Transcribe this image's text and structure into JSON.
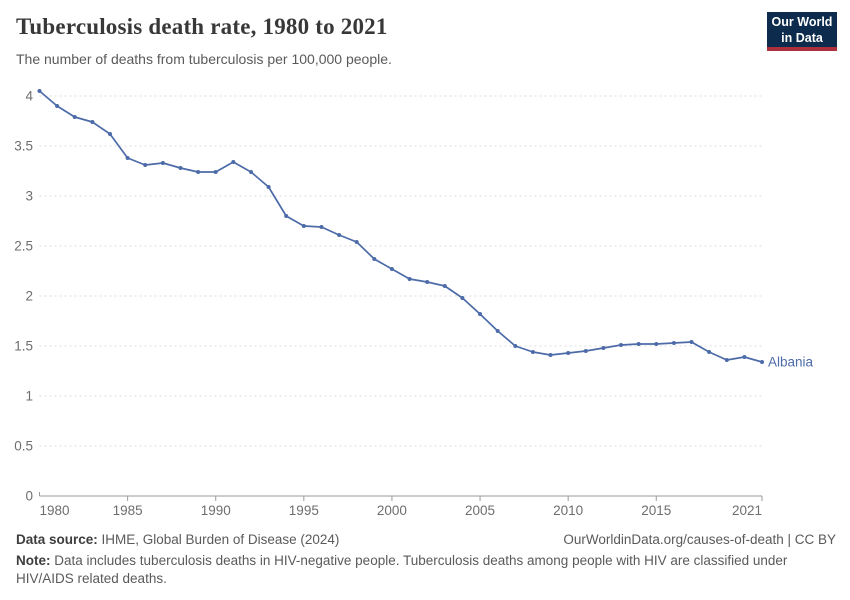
{
  "header": {
    "title": "Tuberculosis death rate, 1980 to 2021",
    "subtitle": "The number of deaths from tuberculosis per 100,000 people.",
    "logo": {
      "line1": "Our World",
      "line2": "in Data"
    }
  },
  "footer": {
    "source_label": "Data source:",
    "source_value": " IHME, Global Burden of Disease (2024)",
    "link": "OurWorldinData.org/causes-of-death | CC BY",
    "note_label": "Note:",
    "note_value": " Data includes tuberculosis deaths in HIV-negative people. Tuberculosis deaths among people with HIV are classified under HIV/AIDS related deaths."
  },
  "colors": {
    "line": "#4c6ba8",
    "grid": "#dcdcdc",
    "axis": "#9a9a9a",
    "tick_text": "#6e6e6e",
    "logo_navy": "#0d2b4c",
    "logo_red": "#ac2f3c"
  },
  "chart_data": {
    "type": "line",
    "title": "Tuberculosis death rate, 1980 to 2021",
    "xlabel": "",
    "ylabel": "",
    "xlim": [
      1980,
      2021
    ],
    "ylim": [
      0,
      4.1
    ],
    "grid": "horizontal-dashed",
    "legend": "end-of-line-label",
    "xticks": [
      1980,
      1985,
      1990,
      1995,
      2000,
      2005,
      2010,
      2015,
      2021
    ],
    "yticks": [
      0,
      0.5,
      1,
      1.5,
      2,
      2.5,
      3,
      3.5,
      4
    ],
    "x": [
      1980,
      1981,
      1982,
      1983,
      1984,
      1985,
      1986,
      1987,
      1988,
      1989,
      1990,
      1991,
      1992,
      1993,
      1994,
      1995,
      1996,
      1997,
      1998,
      1999,
      2000,
      2001,
      2002,
      2003,
      2004,
      2005,
      2006,
      2007,
      2008,
      2009,
      2010,
      2011,
      2012,
      2013,
      2014,
      2015,
      2016,
      2017,
      2018,
      2019,
      2020,
      2021
    ],
    "series": [
      {
        "name": "Albania",
        "values": [
          4.05,
          3.9,
          3.79,
          3.74,
          3.62,
          3.38,
          3.31,
          3.33,
          3.28,
          3.24,
          3.24,
          3.34,
          3.24,
          3.09,
          2.8,
          2.7,
          2.69,
          2.61,
          2.54,
          2.37,
          2.27,
          2.17,
          2.14,
          2.1,
          1.98,
          1.82,
          1.65,
          1.5,
          1.44,
          1.41,
          1.43,
          1.45,
          1.48,
          1.51,
          1.52,
          1.52,
          1.53,
          1.54,
          1.44,
          1.36,
          1.39,
          1.34
        ]
      }
    ]
  }
}
